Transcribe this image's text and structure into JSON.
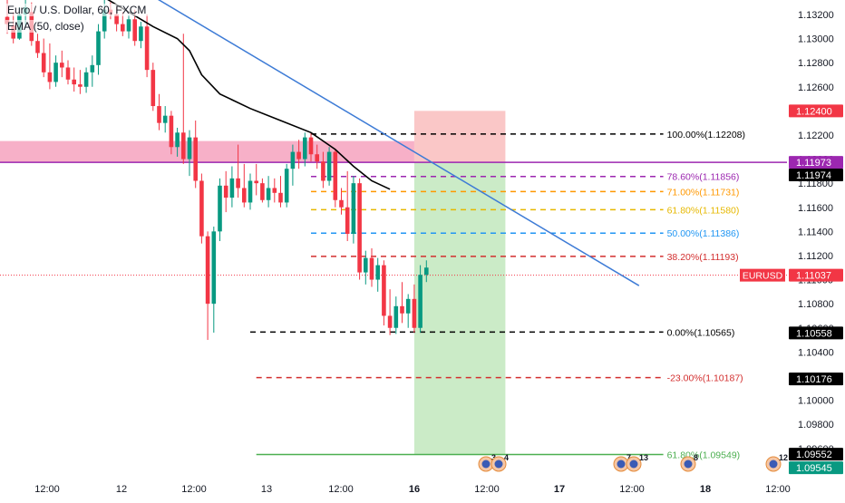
{
  "header": {
    "title": "Euro / U.S. Dollar, 60, FXCM",
    "ema_label": "EMA (50, close)"
  },
  "colors": {
    "up": "#089981",
    "down": "#f23645",
    "ema": "#000000",
    "trendline": "#3d7bd6",
    "resistance_zone": "#f48fb1",
    "purple_level": "#9c27b0",
    "stop_zone": "#f8b4b4",
    "target_zone": "#b9e4b4",
    "price_marker": "#f23645"
  },
  "chart_data": {
    "type": "candlestick",
    "symbol": "EURUSD",
    "interval": "60",
    "ylim": [
      1.0935,
      1.1332
    ],
    "y_ticks": [
      "1.13200",
      "1.13000",
      "1.12800",
      "1.12600",
      "1.12400",
      "1.12200",
      "1.12000",
      "1.11800",
      "1.11600",
      "1.11400",
      "1.11200",
      "1.11000",
      "1.10800",
      "1.10600",
      "1.10400",
      "1.10200",
      "1.10000",
      "1.09800",
      "1.09600"
    ],
    "x_ticks": [
      "12:00",
      "12",
      "12:00",
      "13",
      "12:00",
      "16",
      "12:00",
      "17",
      "12:00",
      "18",
      "12:00"
    ],
    "candles": [
      {
        "o": 1.1318,
        "h": 1.1332,
        "l": 1.1304,
        "c": 1.1312
      },
      {
        "o": 1.1311,
        "h": 1.1322,
        "l": 1.1296,
        "c": 1.13
      },
      {
        "o": 1.13,
        "h": 1.1326,
        "l": 1.1299,
        "c": 1.132
      },
      {
        "o": 1.132,
        "h": 1.1332,
        "l": 1.131,
        "c": 1.1326
      },
      {
        "o": 1.1322,
        "h": 1.133,
        "l": 1.1294,
        "c": 1.1298
      },
      {
        "o": 1.1298,
        "h": 1.1304,
        "l": 1.1284,
        "c": 1.1288
      },
      {
        "o": 1.1288,
        "h": 1.13,
        "l": 1.1268,
        "c": 1.1272
      },
      {
        "o": 1.1272,
        "h": 1.1296,
        "l": 1.1258,
        "c": 1.1264
      },
      {
        "o": 1.1264,
        "h": 1.1286,
        "l": 1.126,
        "c": 1.128
      },
      {
        "o": 1.128,
        "h": 1.129,
        "l": 1.1268,
        "c": 1.1276
      },
      {
        "o": 1.1276,
        "h": 1.1282,
        "l": 1.1262,
        "c": 1.1266
      },
      {
        "o": 1.1266,
        "h": 1.1276,
        "l": 1.1256,
        "c": 1.1262
      },
      {
        "o": 1.1262,
        "h": 1.1274,
        "l": 1.1254,
        "c": 1.126
      },
      {
        "o": 1.126,
        "h": 1.1276,
        "l": 1.1255,
        "c": 1.1272
      },
      {
        "o": 1.1272,
        "h": 1.1286,
        "l": 1.126,
        "c": 1.1278
      },
      {
        "o": 1.1278,
        "h": 1.1312,
        "l": 1.127,
        "c": 1.1306
      },
      {
        "o": 1.1306,
        "h": 1.1332,
        "l": 1.13,
        "c": 1.1324
      },
      {
        "o": 1.1324,
        "h": 1.133,
        "l": 1.1316,
        "c": 1.132
      },
      {
        "o": 1.132,
        "h": 1.1326,
        "l": 1.1306,
        "c": 1.1312
      },
      {
        "o": 1.1312,
        "h": 1.1322,
        "l": 1.1302,
        "c": 1.1306
      },
      {
        "o": 1.1306,
        "h": 1.132,
        "l": 1.13,
        "c": 1.1316
      },
      {
        "o": 1.1316,
        "h": 1.1324,
        "l": 1.1294,
        "c": 1.1298
      },
      {
        "o": 1.1298,
        "h": 1.1314,
        "l": 1.1292,
        "c": 1.131
      },
      {
        "o": 1.131,
        "h": 1.132,
        "l": 1.1268,
        "c": 1.1274
      },
      {
        "o": 1.1274,
        "h": 1.128,
        "l": 1.124,
        "c": 1.1244
      },
      {
        "o": 1.1244,
        "h": 1.1254,
        "l": 1.1224,
        "c": 1.123
      },
      {
        "o": 1.123,
        "h": 1.1244,
        "l": 1.1222,
        "c": 1.1236
      },
      {
        "o": 1.1236,
        "h": 1.124,
        "l": 1.1204,
        "c": 1.121
      },
      {
        "o": 1.121,
        "h": 1.1226,
        "l": 1.1202,
        "c": 1.1222
      },
      {
        "o": 1.1222,
        "h": 1.1304,
        "l": 1.1196,
        "c": 1.12
      },
      {
        "o": 1.12,
        "h": 1.1224,
        "l": 1.1186,
        "c": 1.1218
      },
      {
        "o": 1.1218,
        "h": 1.1232,
        "l": 1.1176,
        "c": 1.1182
      },
      {
        "o": 1.1182,
        "h": 1.1188,
        "l": 1.113,
        "c": 1.1136
      },
      {
        "o": 1.1136,
        "h": 1.114,
        "l": 1.105,
        "c": 1.108
      },
      {
        "o": 1.108,
        "h": 1.1144,
        "l": 1.1056,
        "c": 1.114
      },
      {
        "o": 1.114,
        "h": 1.1184,
        "l": 1.1132,
        "c": 1.1178
      },
      {
        "o": 1.1178,
        "h": 1.119,
        "l": 1.1156,
        "c": 1.1168
      },
      {
        "o": 1.1168,
        "h": 1.1194,
        "l": 1.116,
        "c": 1.1184
      },
      {
        "o": 1.1184,
        "h": 1.1212,
        "l": 1.1168,
        "c": 1.1176
      },
      {
        "o": 1.1176,
        "h": 1.1196,
        "l": 1.116,
        "c": 1.1164
      },
      {
        "o": 1.1164,
        "h": 1.1188,
        "l": 1.1158,
        "c": 1.1182
      },
      {
        "o": 1.1182,
        "h": 1.1196,
        "l": 1.117,
        "c": 1.118
      },
      {
        "o": 1.118,
        "h": 1.1184,
        "l": 1.1164,
        "c": 1.1166
      },
      {
        "o": 1.1166,
        "h": 1.1186,
        "l": 1.116,
        "c": 1.1176
      },
      {
        "o": 1.1176,
        "h": 1.1184,
        "l": 1.1164,
        "c": 1.1172
      },
      {
        "o": 1.1172,
        "h": 1.1186,
        "l": 1.116,
        "c": 1.1164
      },
      {
        "o": 1.1164,
        "h": 1.1196,
        "l": 1.116,
        "c": 1.1192
      },
      {
        "o": 1.1192,
        "h": 1.1212,
        "l": 1.1178,
        "c": 1.1206
      },
      {
        "o": 1.1206,
        "h": 1.1216,
        "l": 1.1192,
        "c": 1.12
      },
      {
        "o": 1.12,
        "h": 1.1222,
        "l": 1.1194,
        "c": 1.1218
      },
      {
        "o": 1.1218,
        "h": 1.1222,
        "l": 1.1198,
        "c": 1.1204
      },
      {
        "o": 1.1204,
        "h": 1.1212,
        "l": 1.1192,
        "c": 1.1198
      },
      {
        "o": 1.1198,
        "h": 1.1206,
        "l": 1.1176,
        "c": 1.1182
      },
      {
        "o": 1.1182,
        "h": 1.121,
        "l": 1.1178,
        "c": 1.1206
      },
      {
        "o": 1.1206,
        "h": 1.1208,
        "l": 1.116,
        "c": 1.1166
      },
      {
        "o": 1.1166,
        "h": 1.1176,
        "l": 1.1154,
        "c": 1.116
      },
      {
        "o": 1.116,
        "h": 1.119,
        "l": 1.1132,
        "c": 1.1138
      },
      {
        "o": 1.1138,
        "h": 1.1186,
        "l": 1.113,
        "c": 1.118
      },
      {
        "o": 1.118,
        "h": 1.1184,
        "l": 1.11,
        "c": 1.1106
      },
      {
        "o": 1.1106,
        "h": 1.1124,
        "l": 1.1096,
        "c": 1.1118
      },
      {
        "o": 1.1118,
        "h": 1.1126,
        "l": 1.1094,
        "c": 1.11
      },
      {
        "o": 1.11,
        "h": 1.1118,
        "l": 1.109,
        "c": 1.1112
      },
      {
        "o": 1.1112,
        "h": 1.1116,
        "l": 1.1062,
        "c": 1.107
      },
      {
        "o": 1.107,
        "h": 1.1092,
        "l": 1.1054,
        "c": 1.106
      },
      {
        "o": 1.106,
        "h": 1.1086,
        "l": 1.1055,
        "c": 1.1078
      },
      {
        "o": 1.1078,
        "h": 1.1098,
        "l": 1.1064,
        "c": 1.1072
      },
      {
        "o": 1.1072,
        "h": 1.1088,
        "l": 1.106,
        "c": 1.1084
      },
      {
        "o": 1.1084,
        "h": 1.1096,
        "l": 1.1056,
        "c": 1.106
      },
      {
        "o": 1.106,
        "h": 1.1112,
        "l": 1.1056,
        "c": 1.1104
      },
      {
        "o": 1.1104,
        "h": 1.1116,
        "l": 1.1098,
        "c": 1.111
      }
    ],
    "ema": [
      {
        "i": 16,
        "v": 1.1334
      },
      {
        "i": 20,
        "v": 1.1322
      },
      {
        "i": 24,
        "v": 1.131
      },
      {
        "i": 28,
        "v": 1.13
      },
      {
        "i": 30,
        "v": 1.129
      },
      {
        "i": 32,
        "v": 1.127
      },
      {
        "i": 35,
        "v": 1.1254
      },
      {
        "i": 40,
        "v": 1.1242
      },
      {
        "i": 45,
        "v": 1.1232
      },
      {
        "i": 50,
        "v": 1.1222
      },
      {
        "i": 54,
        "v": 1.1208
      },
      {
        "i": 57,
        "v": 1.1194
      },
      {
        "i": 60,
        "v": 1.1182
      },
      {
        "i": 63,
        "v": 1.1175
      }
    ],
    "trendline": {
      "from": {
        "i": 21,
        "v": 1.1344
      },
      "to": {
        "i": 104,
        "v": 1.1095
      }
    },
    "resistance_zone": {
      "from_i": 0,
      "to_i": 67,
      "top": 1.1215,
      "bottom": 1.1197
    },
    "purple_level": 1.11973,
    "position": {
      "from_i": 67,
      "to_i": 82,
      "stop_top": 1.124,
      "entry": 1.11973,
      "target": 1.0955
    },
    "fib": {
      "from_i": 50,
      "to_i": 108,
      "levels": [
        {
          "value": 1.12208,
          "label": "100.00%(1.12208)",
          "color": "#000000",
          "style": "dashed"
        },
        {
          "value": 1.11856,
          "label": "78.60%(1.11856)",
          "color": "#9c27b0",
          "style": "dashed"
        },
        {
          "value": 1.11731,
          "label": "71.00%(1.11731)",
          "color": "#ff9800",
          "style": "dashed"
        },
        {
          "value": 1.1158,
          "label": "61.80%(1.11580)",
          "color": "#e6b800",
          "style": "dashed"
        },
        {
          "value": 1.11386,
          "label": "50.00%(1.11386)",
          "color": "#2196f3",
          "style": "dashed"
        },
        {
          "value": 1.11193,
          "label": "38.20%(1.11193)",
          "color": "#d32f2f",
          "style": "dashed"
        },
        {
          "value": 1.10565,
          "label": "0.00%(1.10565)",
          "color": "#000000",
          "style": "dashed",
          "from_i": 40
        },
        {
          "value": 1.10187,
          "label": "-23.00%(1.10187)",
          "color": "#d32f2f",
          "style": "dashed",
          "from_i": 41
        },
        {
          "value": 1.09549,
          "label": "61.80%(1.09549)",
          "color": "#4caf50",
          "style": "solid",
          "from_i": 41
        }
      ]
    },
    "current_price": 1.11037,
    "price_badges": [
      {
        "value": 1.124,
        "text": "1.12400",
        "bg": "#f23645",
        "fg": "#ffffff"
      },
      {
        "value": 1.11973,
        "text": "1.11973",
        "bg": "#9c27b0",
        "fg": "#ffffff"
      },
      {
        "value": 1.11974,
        "text": "1.11974",
        "bg": "#000000",
        "fg": "#ffffff",
        "offset": 1
      },
      {
        "value": 1.11037,
        "text": "1.11037",
        "bg": "#f23645",
        "fg": "#ffffff"
      },
      {
        "value": 1.10558,
        "text": "1.10558",
        "bg": "#000000",
        "fg": "#ffffff"
      },
      {
        "value": 1.10176,
        "text": "1.10176",
        "bg": "#000000",
        "fg": "#ffffff"
      },
      {
        "value": 1.09552,
        "text": "1.09552",
        "bg": "#000000",
        "fg": "#ffffff"
      },
      {
        "value": 1.09545,
        "text": "1.09545",
        "bg": "#089981",
        "fg": "#ffffff",
        "offset": 1
      }
    ],
    "symbol_tag": {
      "text": "EURUSD",
      "bg": "#f23645",
      "fg": "#ffffff"
    },
    "events": [
      {
        "text": "3",
        "at": "16 12:00"
      },
      {
        "text": "4",
        "at": "16 12:00"
      },
      {
        "text": "7",
        "at": "17 12:00"
      },
      {
        "text": "13",
        "at": "17 12:00"
      },
      {
        "text": "8",
        "at": "18"
      },
      {
        "text": "12",
        "at": "18 12:00"
      }
    ]
  }
}
